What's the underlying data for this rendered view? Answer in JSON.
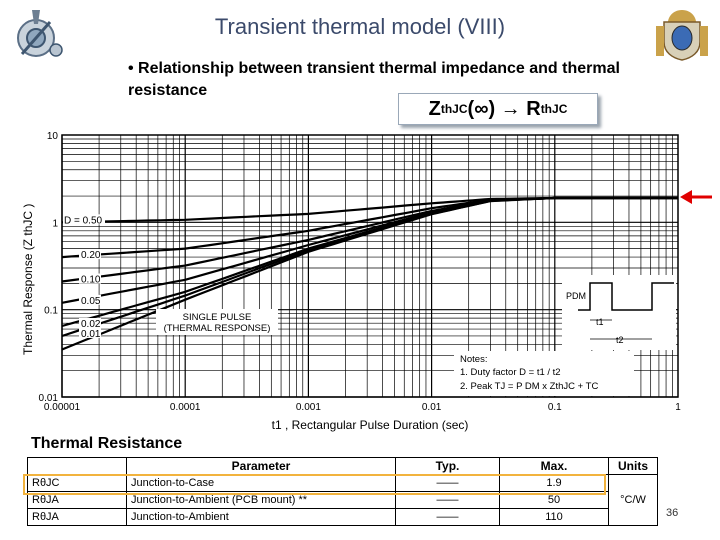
{
  "slide": {
    "title": "Transient thermal model (VIII)",
    "bullet": "Relationship between transient thermal impedance and thermal resistance",
    "formula": {
      "z": "Z",
      "z_sub": "thJC",
      "arg": "(∞) → ",
      "r": "R",
      "r_sub": "thJC"
    },
    "page_number": "36"
  },
  "chart_data": {
    "type": "line",
    "x_scale": "log",
    "y_scale": "log",
    "xlim": [
      1e-05,
      1
    ],
    "ylim": [
      0.01,
      10
    ],
    "xlabel": "t1 , Rectangular Pulse Duration (sec)",
    "ylabel": "Thermal Response (Z thJC )",
    "x_ticks": [
      "0.00001",
      "0.0001",
      "0.001",
      "0.01",
      "0.1",
      "1"
    ],
    "y_ticks": [
      "0.01",
      "0.1",
      "1",
      "10"
    ],
    "grid": true,
    "series": [
      {
        "name": "D = 0.50",
        "x": [
          1e-05,
          0.0001,
          0.001,
          0.01,
          0.03,
          0.1,
          1
        ],
        "y": [
          1.0,
          1.07,
          1.25,
          1.65,
          1.85,
          1.9,
          1.9
        ]
      },
      {
        "name": "0.20",
        "x": [
          1e-05,
          0.0001,
          0.001,
          0.01,
          0.03,
          0.1,
          1
        ],
        "y": [
          0.4,
          0.5,
          0.8,
          1.45,
          1.82,
          1.9,
          1.9
        ]
      },
      {
        "name": "0.10",
        "x": [
          1e-05,
          0.0001,
          0.001,
          0.01,
          0.03,
          0.1,
          1
        ],
        "y": [
          0.21,
          0.32,
          0.63,
          1.35,
          1.8,
          1.9,
          1.9
        ]
      },
      {
        "name": "0.05",
        "x": [
          1e-05,
          0.0001,
          0.001,
          0.01,
          0.03,
          0.1,
          1
        ],
        "y": [
          0.12,
          0.22,
          0.55,
          1.3,
          1.78,
          1.9,
          1.9
        ]
      },
      {
        "name": "0.02",
        "x": [
          1e-05,
          0.0001,
          0.001,
          0.01,
          0.03,
          0.1,
          1
        ],
        "y": [
          0.065,
          0.16,
          0.5,
          1.27,
          1.77,
          1.9,
          1.9
        ]
      },
      {
        "name": "0.01",
        "x": [
          1e-05,
          0.0001,
          0.001,
          0.01,
          0.03,
          0.1,
          1
        ],
        "y": [
          0.05,
          0.145,
          0.48,
          1.25,
          1.76,
          1.9,
          1.9
        ]
      },
      {
        "name": "SINGLE PULSE",
        "x": [
          1e-05,
          0.0001,
          0.001,
          0.01,
          0.03,
          0.1,
          1
        ],
        "y": [
          0.035,
          0.13,
          0.46,
          1.24,
          1.75,
          1.9,
          1.9
        ]
      }
    ],
    "annotations": {
      "single_pulse": [
        "SINGLE PULSE",
        "(THERMAL RESPONSE)"
      ],
      "notes_title": "Notes:",
      "note1": "1. Duty factor D = t1 / t2",
      "note2": "2. Peak TJ = P DM x  ZthJC  + TC",
      "pulse_labels": {
        "pdm": "PDM",
        "t1": "t1",
        "t2": "t2"
      }
    },
    "marker_color": "#e00000"
  },
  "thermal_resistance": {
    "title": "Thermal Resistance",
    "headers": [
      "",
      "Parameter",
      "Typ.",
      "Max.",
      "Units"
    ],
    "rows": [
      {
        "symbol": "RθJC",
        "parameter": "Junction-to-Case",
        "typ": "——",
        "max": "1.9",
        "units": ""
      },
      {
        "symbol": "RθJA",
        "parameter": "Junction-to-Ambient (PCB mount) **",
        "typ": "——",
        "max": "50",
        "units": "°C/W"
      },
      {
        "symbol": "RθJA",
        "parameter": "Junction-to-Ambient",
        "typ": "——",
        "max": "110",
        "units": ""
      }
    ]
  }
}
